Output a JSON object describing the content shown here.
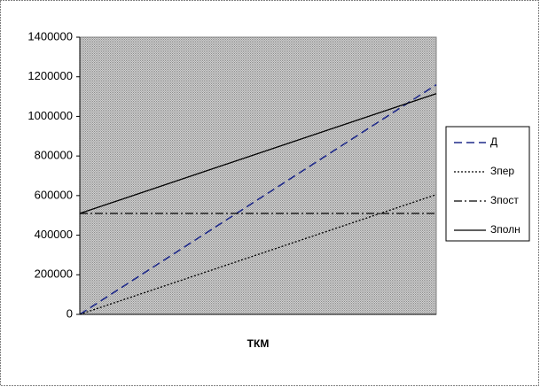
{
  "chart_data": {
    "type": "line",
    "x_label": "ТКМ",
    "categories": [
      null,
      null
    ],
    "series": [
      {
        "name": "Д",
        "color": "#1f2a8a",
        "style": "dashed",
        "values": [
          0,
          1160000
        ]
      },
      {
        "name": "Зпер",
        "color": "#000000",
        "style": "dotted",
        "values": [
          0,
          605000
        ]
      },
      {
        "name": "Зпост",
        "color": "#000000",
        "style": "dashdot",
        "values": [
          510000,
          510000
        ]
      },
      {
        "name": "Зполн",
        "color": "#000000",
        "style": "solid",
        "values": [
          510000,
          1115000
        ]
      }
    ],
    "ylim": [
      0,
      1400000
    ],
    "yticks": [
      0,
      200000,
      400000,
      600000,
      800000,
      1000000,
      1200000,
      1400000
    ],
    "legend": "right"
  }
}
